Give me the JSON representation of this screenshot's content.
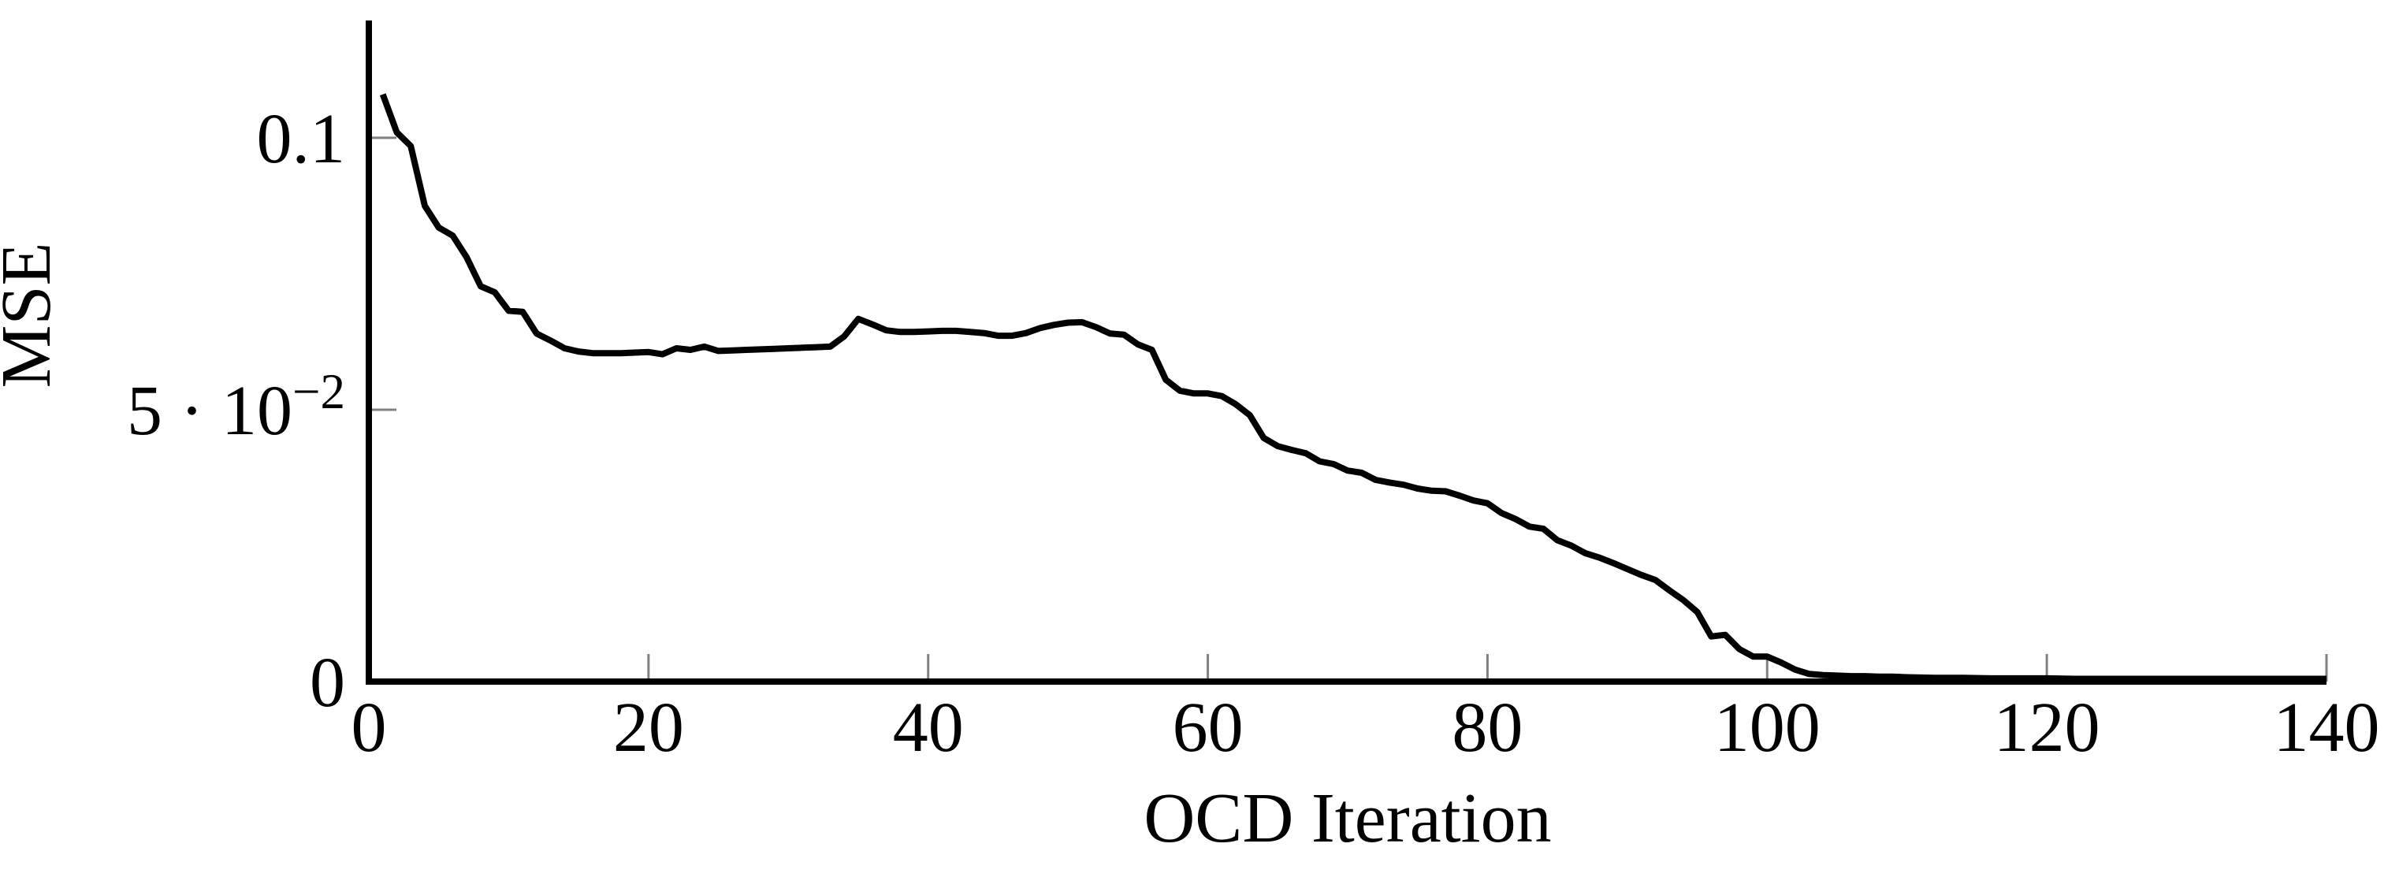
{
  "figure": {
    "background_color": "#ffffff",
    "axis_color": "#000000",
    "tick_mark_color": "#808080",
    "line_color": "#000000"
  },
  "chart_data": {
    "type": "line",
    "title": "",
    "xlabel": "OCD Iteration",
    "ylabel": "MSE",
    "xlim": [
      0,
      140
    ],
    "ylim": [
      0,
      0.121
    ],
    "grid": false,
    "legend": "none",
    "x_ticks": [
      {
        "value": 0,
        "label": "0"
      },
      {
        "value": 20,
        "label": "20"
      },
      {
        "value": 40,
        "label": "40"
      },
      {
        "value": 60,
        "label": "60"
      },
      {
        "value": 80,
        "label": "80"
      },
      {
        "value": 100,
        "label": "100"
      },
      {
        "value": 120,
        "label": "120"
      },
      {
        "value": 140,
        "label": "140"
      }
    ],
    "y_ticks": [
      {
        "value": 0,
        "label": "0",
        "sup": ""
      },
      {
        "value": 0.05,
        "label": "5 · 10",
        "sup": "−2"
      },
      {
        "value": 0.1,
        "label": "0.1",
        "sup": ""
      }
    ],
    "series": [
      {
        "name": "MSE",
        "color": "#000000",
        "points": [
          [
            1,
            0.108
          ],
          [
            2,
            0.101
          ],
          [
            3,
            0.0985
          ],
          [
            4,
            0.0875
          ],
          [
            5,
            0.0835
          ],
          [
            6,
            0.082
          ],
          [
            7,
            0.078
          ],
          [
            8,
            0.0727
          ],
          [
            9,
            0.0716
          ],
          [
            10,
            0.0682
          ],
          [
            11,
            0.068
          ],
          [
            12,
            0.064
          ],
          [
            13,
            0.0627
          ],
          [
            14,
            0.0613
          ],
          [
            15,
            0.0607
          ],
          [
            16,
            0.0604
          ],
          [
            17,
            0.0604
          ],
          [
            18,
            0.0604
          ],
          [
            19,
            0.0605
          ],
          [
            20,
            0.0606
          ],
          [
            21,
            0.0602
          ],
          [
            22,
            0.0613
          ],
          [
            23,
            0.061
          ],
          [
            24,
            0.0616
          ],
          [
            25,
            0.0608
          ],
          [
            26,
            0.0609
          ],
          [
            27,
            0.061
          ],
          [
            28,
            0.0611
          ],
          [
            29,
            0.0612
          ],
          [
            30,
            0.0613
          ],
          [
            31,
            0.0614
          ],
          [
            32,
            0.0615
          ],
          [
            33,
            0.0616
          ],
          [
            34,
            0.0635
          ],
          [
            35,
            0.0667
          ],
          [
            36,
            0.0657
          ],
          [
            37,
            0.0646
          ],
          [
            38,
            0.0643
          ],
          [
            39,
            0.0643
          ],
          [
            40,
            0.0644
          ],
          [
            41,
            0.0645
          ],
          [
            42,
            0.0645
          ],
          [
            43,
            0.0643
          ],
          [
            44,
            0.0641
          ],
          [
            45,
            0.0636
          ],
          [
            46,
            0.0636
          ],
          [
            47,
            0.0641
          ],
          [
            48,
            0.065
          ],
          [
            49,
            0.0656
          ],
          [
            50,
            0.066
          ],
          [
            51,
            0.0661
          ],
          [
            52,
            0.0652
          ],
          [
            53,
            0.064
          ],
          [
            54,
            0.0638
          ],
          [
            55,
            0.062
          ],
          [
            56,
            0.061
          ],
          [
            57,
            0.0555
          ],
          [
            58,
            0.0535
          ],
          [
            59,
            0.053
          ],
          [
            60,
            0.053
          ],
          [
            61,
            0.0525
          ],
          [
            62,
            0.051
          ],
          [
            63,
            0.049
          ],
          [
            64,
            0.0448
          ],
          [
            65,
            0.0433
          ],
          [
            66,
            0.0426
          ],
          [
            67,
            0.042
          ],
          [
            68,
            0.0405
          ],
          [
            69,
            0.04
          ],
          [
            70,
            0.0388
          ],
          [
            71,
            0.0384
          ],
          [
            72,
            0.0371
          ],
          [
            73,
            0.0366
          ],
          [
            74,
            0.0362
          ],
          [
            75,
            0.0355
          ],
          [
            76,
            0.0351
          ],
          [
            77,
            0.035
          ],
          [
            78,
            0.0342
          ],
          [
            79,
            0.0333
          ],
          [
            80,
            0.0328
          ],
          [
            81,
            0.031
          ],
          [
            82,
            0.0299
          ],
          [
            83,
            0.0285
          ],
          [
            84,
            0.0281
          ],
          [
            85,
            0.026
          ],
          [
            86,
            0.025
          ],
          [
            87,
            0.0236
          ],
          [
            88,
            0.0228
          ],
          [
            89,
            0.0218
          ],
          [
            90,
            0.0207
          ],
          [
            91,
            0.0196
          ],
          [
            92,
            0.0187
          ],
          [
            93,
            0.0168
          ],
          [
            94,
            0.015
          ],
          [
            95,
            0.0128
          ],
          [
            96,
            0.0083
          ],
          [
            97,
            0.0086
          ],
          [
            98,
            0.006
          ],
          [
            99,
            0.0046
          ],
          [
            100,
            0.0046
          ],
          [
            101,
            0.0035
          ],
          [
            102,
            0.0022
          ],
          [
            103,
            0.0014
          ],
          [
            104,
            0.0012
          ],
          [
            105,
            0.0011
          ],
          [
            106,
            0.001
          ],
          [
            107,
            0.001
          ],
          [
            108,
            0.0009
          ],
          [
            109,
            0.0009
          ],
          [
            110,
            0.0008
          ],
          [
            112,
            0.0007
          ],
          [
            114,
            0.0007
          ],
          [
            116,
            0.0006
          ],
          [
            118,
            0.0006
          ],
          [
            120,
            0.0006
          ],
          [
            122,
            0.0005
          ],
          [
            124,
            0.0005
          ],
          [
            126,
            0.0005
          ],
          [
            128,
            0.0005
          ],
          [
            130,
            0.0005
          ],
          [
            132,
            0.0005
          ],
          [
            134,
            0.0005
          ],
          [
            136,
            0.0005
          ],
          [
            138,
            0.0005
          ],
          [
            140,
            0.0005
          ]
        ]
      }
    ]
  }
}
